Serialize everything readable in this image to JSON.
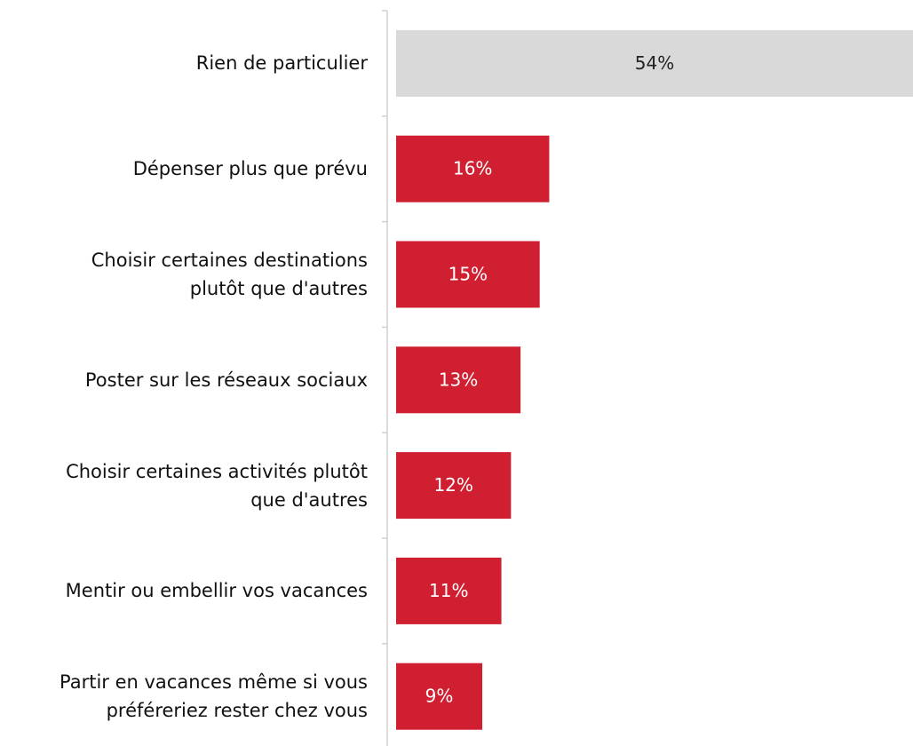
{
  "chart_data": {
    "type": "bar",
    "orientation": "horizontal",
    "categories": [
      "Rien de particulier",
      "Dépenser plus que prévu",
      "Choisir certaines destinations\nplutôt que d'autres",
      "Poster sur les réseaux sociaux",
      "Choisir certaines activités plutôt\nque d'autres",
      "Mentir ou embellir vos vacances",
      "Partir en vacances même si vous\npréféreriez rester chez vous"
    ],
    "values": [
      54,
      16,
      15,
      13,
      12,
      11,
      9
    ],
    "value_labels": [
      "54%",
      "16%",
      "15%",
      "13%",
      "12%",
      "11%",
      "9%"
    ],
    "colors": [
      "#d9d9d9",
      "#d01f30",
      "#d01f30",
      "#d01f30",
      "#d01f30",
      "#d01f30",
      "#d01f30"
    ]
  }
}
